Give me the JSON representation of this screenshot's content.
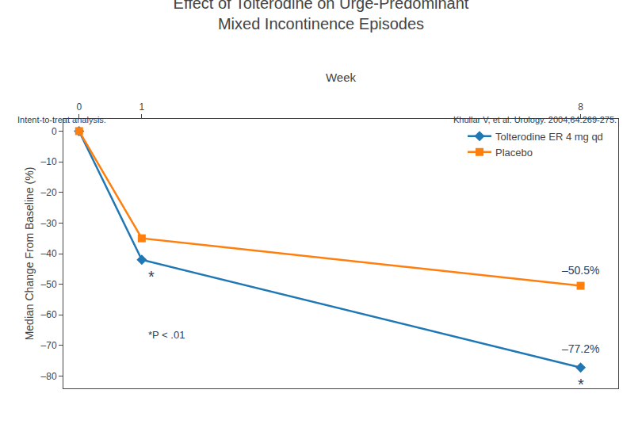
{
  "chart_data": {
    "type": "line",
    "title": "Effect of Tolterodine on Urge-Predominant\nMixed Incontinence Episodes",
    "xlabel": "Week",
    "ylabel": "Median Change From Baseline (%)",
    "x": [
      0,
      1,
      8
    ],
    "series": [
      {
        "name": "Tolterodine ER 4 mg qd",
        "values": [
          0,
          -42,
          -77.2
        ],
        "marker": "diamond"
      },
      {
        "name": "Placebo",
        "values": [
          0,
          -35,
          -50.5
        ],
        "marker": "square"
      }
    ],
    "xlim": [
      -0.25,
      8.6
    ],
    "xticks": [
      0,
      1,
      8
    ],
    "ylim": [
      -84,
      4
    ],
    "yticks": [
      0,
      {
        "value": -10,
        "label": "–10"
      },
      {
        "value": -20,
        "label": "–20"
      },
      {
        "value": -30,
        "label": "–30"
      },
      {
        "value": -40,
        "label": "–40"
      },
      {
        "value": -50,
        "label": "–50"
      },
      {
        "value": -60,
        "label": "–60"
      },
      {
        "value": -70,
        "label": "–70"
      },
      {
        "value": -80,
        "label": "–80"
      }
    ],
    "grid": false,
    "legend": "upper right",
    "annotations": [
      "–50.5%",
      "–77.2%",
      "*",
      "*",
      "*P < .01"
    ],
    "notes": [
      "Intent-to-treat analysis.",
      "Khullar V, et al. Urology. 2004;64:269-275."
    ]
  }
}
